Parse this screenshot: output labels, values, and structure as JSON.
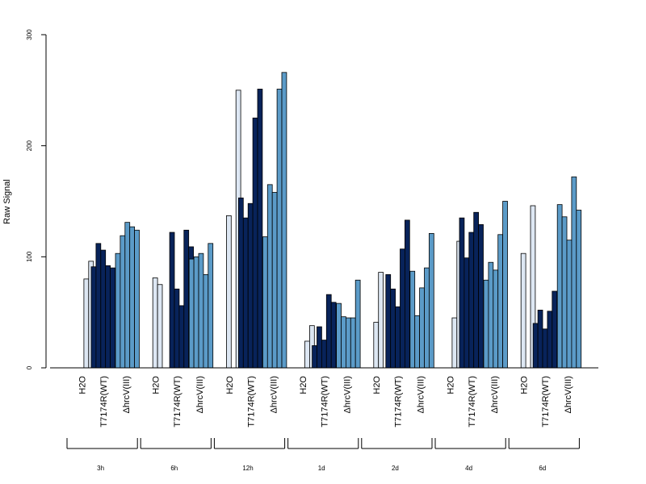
{
  "chart_data": {
    "type": "bar",
    "ylabel": "Raw Signal",
    "ylim": [
      0,
      300
    ],
    "yticks": [
      0,
      100,
      200,
      300
    ],
    "group_labels": [
      "H2O",
      "T7174R(WT)",
      "ΔhrcV(III)"
    ],
    "colors": {
      "H2O": "#dde7f3",
      "T7174R(WT)": "#08235a",
      "ΔhrcV(III)": "#5b9bc8"
    },
    "timepoints": [
      {
        "label": "3h",
        "groups": [
          [
            0,
            80,
            96
          ],
          [
            91,
            112,
            106,
            92,
            90
          ],
          [
            103,
            119,
            131,
            127,
            124
          ]
        ]
      },
      {
        "label": "6h",
        "groups": [
          [
            81,
            75,
            0
          ],
          [
            0,
            122,
            71,
            56,
            124,
            109
          ],
          [
            98,
            100,
            103,
            84,
            112
          ]
        ]
      },
      {
        "label": "12h",
        "groups": [
          [
            137,
            0,
            250
          ],
          [
            153,
            135,
            148,
            225,
            251
          ],
          [
            118,
            165,
            158,
            251,
            266
          ]
        ]
      },
      {
        "label": "1d",
        "groups": [
          [
            0,
            24,
            38
          ],
          [
            20,
            37,
            25,
            66,
            59
          ],
          [
            58,
            46,
            45,
            45,
            79
          ]
        ]
      },
      {
        "label": "2d",
        "groups": [
          [
            41,
            86,
            0
          ],
          [
            84,
            71,
            55,
            107,
            133
          ],
          [
            87,
            47,
            72,
            90,
            121
          ]
        ]
      },
      {
        "label": "4d",
        "groups": [
          [
            0,
            45,
            114
          ],
          [
            135,
            99,
            122,
            140,
            129
          ],
          [
            79,
            95,
            88,
            120,
            150
          ]
        ]
      },
      {
        "label": "6d",
        "groups": [
          [
            103,
            0,
            146
          ],
          [
            40,
            52,
            35,
            51,
            69
          ],
          [
            147,
            136,
            115,
            172,
            142
          ]
        ]
      }
    ]
  }
}
